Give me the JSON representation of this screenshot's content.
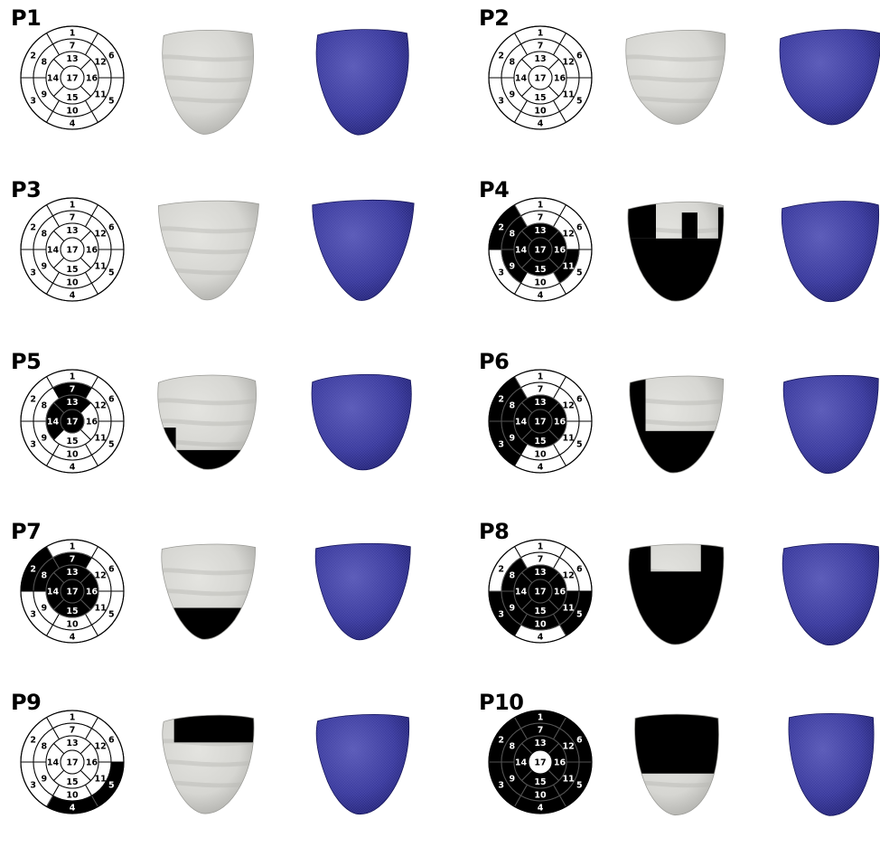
{
  "panels": [
    {
      "label": "P1",
      "dark": [],
      "heart": {
        "shape": 0,
        "mask": "none"
      }
    },
    {
      "label": "P2",
      "dark": [],
      "heart": {
        "shape": 1,
        "mask": "none"
      }
    },
    {
      "label": "P3",
      "dark": [],
      "heart": {
        "shape": 2,
        "mask": "none"
      }
    },
    {
      "label": "P4",
      "dark": [
        2,
        8,
        9,
        11,
        13,
        14,
        15,
        16,
        17
      ],
      "heart": {
        "shape": 3,
        "mask": "p4"
      }
    },
    {
      "label": "P5",
      "dark": [
        7,
        13,
        14,
        17
      ],
      "heart": {
        "shape": 4,
        "mask": "bottom"
      }
    },
    {
      "label": "P6",
      "dark": [
        2,
        3,
        8,
        9,
        13,
        14,
        15,
        16,
        17
      ],
      "heart": {
        "shape": 5,
        "mask": "left-bottom"
      }
    },
    {
      "label": "P7",
      "dark": [
        2,
        7,
        8,
        13,
        14,
        15,
        16,
        17
      ],
      "heart": {
        "shape": 6,
        "mask": "bottom-small"
      }
    },
    {
      "label": "P8",
      "dark": [
        3,
        5,
        8,
        9,
        10,
        11,
        13,
        14,
        15,
        16,
        17
      ],
      "heart": {
        "shape": 7,
        "mask": "p8"
      }
    },
    {
      "label": "P9",
      "dark": [
        4,
        5
      ],
      "heart": {
        "shape": 8,
        "mask": "top-band"
      }
    },
    {
      "label": "P10",
      "dark": [
        1,
        2,
        3,
        4,
        5,
        6,
        7,
        8,
        9,
        10,
        11,
        12,
        13,
        14,
        15,
        16
      ],
      "heart": {
        "shape": 9,
        "mask": "top-large"
      }
    }
  ],
  "segment_labels": [
    "1",
    "2",
    "3",
    "4",
    "5",
    "6",
    "7",
    "8",
    "9",
    "10",
    "11",
    "12",
    "13",
    "14",
    "15",
    "16",
    "17"
  ],
  "colors": {
    "dark": "#000000",
    "light": "#ffffff",
    "heart_light": "#d6d6d2",
    "heart_shade": "#a9a9a5",
    "mesh": "#2a2a8c",
    "mesh_line": "#6a6ac8"
  },
  "icons": {
    "heart": "lv-surface-render",
    "mesh": "lv-mesh-render",
    "bullseye": "aha-17-segment-bullseye"
  }
}
